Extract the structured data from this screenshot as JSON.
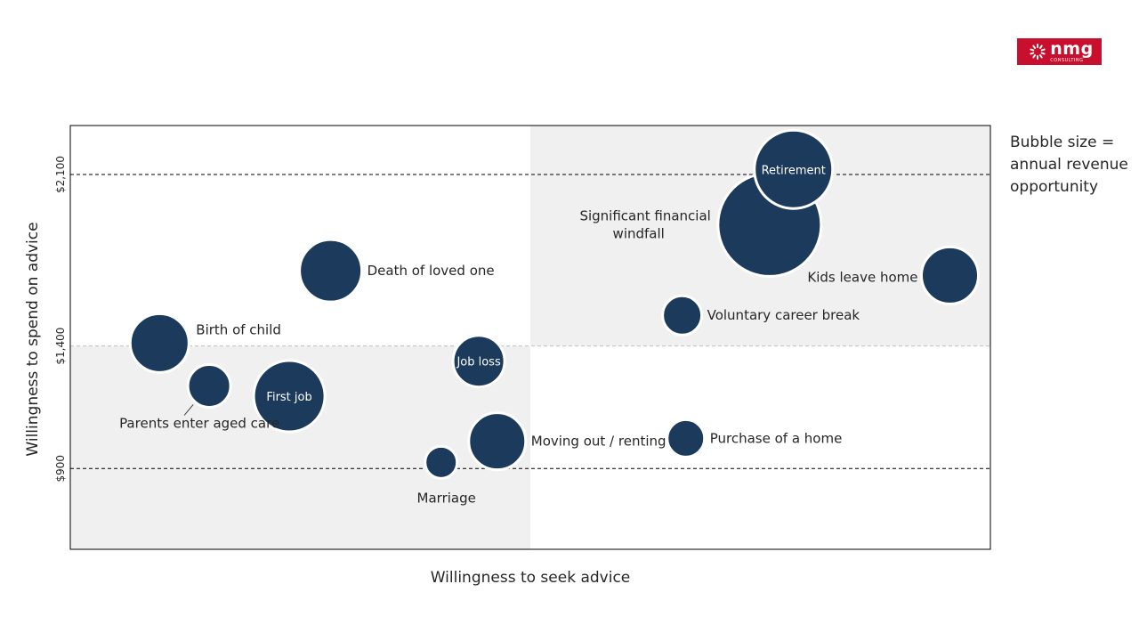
{
  "brand": {
    "logo_name": "nmg",
    "logo_sub": "CONSULTING",
    "logo_color": "#c8102e"
  },
  "legend_note": "Bubble size =\nannual revenue\nopportunity",
  "colors": {
    "bubble": "#1b3a5c",
    "shade": "#f0f0f0",
    "reference_line": "#000000",
    "midline": "#bfbfbf"
  },
  "chart_data": {
    "type": "scatter",
    "title": "",
    "xlabel": "Willingness to seek advice",
    "ylabel": "Willingness to spend on advice",
    "x_range": [
      0,
      100
    ],
    "y_range": [
      570,
      2300
    ],
    "y_ticks": [
      {
        "value": 900,
        "label": "$900"
      },
      {
        "value": 1400,
        "label": "$1,400"
      },
      {
        "value": 2100,
        "label": "$2,100"
      }
    ],
    "quadrant_split": {
      "x": 50,
      "y": 1400
    },
    "shaded_quadrants": [
      "bottom-left",
      "top-right"
    ],
    "size_encoding": "annual revenue opportunity",
    "points": [
      {
        "label": "Birth of child",
        "x": 9.7,
        "y": 1412,
        "size": 33,
        "label_pos": "right-up",
        "label_inside": false
      },
      {
        "label": "Parents enter aged care",
        "x": 15.1,
        "y": 1237,
        "size": 24,
        "label_pos": "below-left",
        "label_inside": false
      },
      {
        "label": "First job",
        "x": 23.8,
        "y": 1195,
        "size": 40,
        "label_pos": "inside",
        "label_inside": true
      },
      {
        "label": "Death of loved one",
        "x": 28.3,
        "y": 1707,
        "size": 35,
        "label_pos": "right",
        "label_inside": false
      },
      {
        "label": "Job loss",
        "x": 44.4,
        "y": 1338,
        "size": 29,
        "label_pos": "inside",
        "label_inside": true
      },
      {
        "label": "Marriage",
        "x": 40.3,
        "y": 925,
        "size": 18,
        "label_pos": "below",
        "label_inside": false
      },
      {
        "label": "Moving out / renting",
        "x": 46.4,
        "y": 1011,
        "size": 32,
        "label_pos": "right",
        "label_inside": false
      },
      {
        "label": "Purchase of a home",
        "x": 66.9,
        "y": 1023,
        "size": 21,
        "label_pos": "right",
        "label_inside": false
      },
      {
        "label": "Voluntary career break",
        "x": 66.5,
        "y": 1525,
        "size": 22,
        "label_pos": "right",
        "label_inside": false
      },
      {
        "label": "Significant financial windfall",
        "x": 76.0,
        "y": 1895,
        "size": 58,
        "label_pos": "left",
        "label_inside": false
      },
      {
        "label": "Retirement",
        "x": 78.6,
        "y": 2121,
        "size": 44,
        "label_pos": "inside",
        "label_inside": true
      },
      {
        "label": "Kids leave home",
        "x": 95.6,
        "y": 1688,
        "size": 32,
        "label_pos": "left",
        "label_inside": false
      }
    ]
  }
}
